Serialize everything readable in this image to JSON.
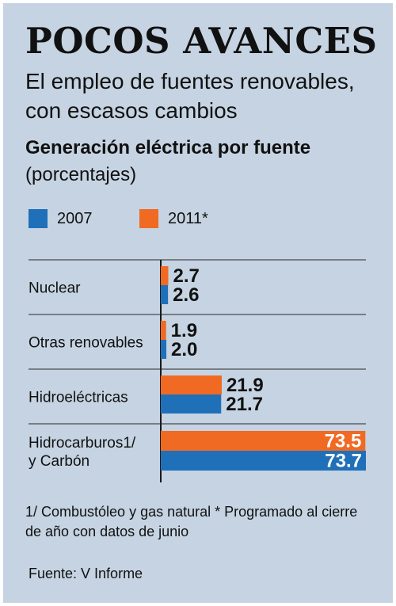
{
  "header": {
    "title": "POCOS AVANCES",
    "subtitle": "El empleo de fuentes renovables, con escasos cambios"
  },
  "colors": {
    "background": "#c5d3e2",
    "series_2007": "#1f70b8",
    "series_2011": "#f06a23"
  },
  "chart_data": {
    "type": "bar",
    "orientation": "horizontal",
    "title": "Generación eléctrica por fuente",
    "subtitle": "(porcentajes)",
    "categories": [
      "Nuclear",
      "Otras renovables",
      "Hidroeléctricas",
      "Hidrocarburos1/ y Carbón"
    ],
    "category_lines": [
      [
        "Nuclear"
      ],
      [
        "Otras renovables"
      ],
      [
        "Hidroeléctricas"
      ],
      [
        "Hidrocarburos1/",
        "y Carbón"
      ]
    ],
    "series": [
      {
        "name": "2011*",
        "color": "#f06a23",
        "values": [
          2.7,
          1.9,
          21.9,
          73.5
        ],
        "labels": [
          "2.7",
          "1.9",
          "21.9",
          "73.5"
        ]
      },
      {
        "name": "2007",
        "color": "#1f70b8",
        "values": [
          2.6,
          2.0,
          21.7,
          73.7
        ],
        "labels": [
          "2.6",
          "2.0",
          "21.7",
          "73.7"
        ]
      }
    ],
    "xlim": [
      0,
      73.7
    ],
    "grid": false,
    "legend": "top-left"
  },
  "legend": {
    "items": [
      {
        "label": "2007",
        "color": "#1f70b8"
      },
      {
        "label": "2011*",
        "color": "#f06a23"
      }
    ]
  },
  "footer": {
    "note": "1/ Combustóleo y gas natural * Programado al cierre de año con datos de junio",
    "source": "Fuente: V Informe"
  }
}
